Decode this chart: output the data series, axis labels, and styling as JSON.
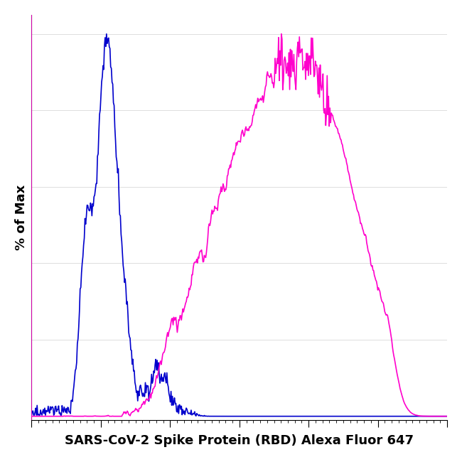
{
  "xlabel": "SARS-CoV-2 Spike Protein (RBD) Alexa Fluor 647",
  "ylabel": "% of Max",
  "background_color": "#ffffff",
  "plot_bg_color": "#ffffff",
  "blue_color": "#0000cc",
  "pink_color": "#ff00cc",
  "line_width": 1.2,
  "xlabel_fontsize": 13,
  "ylabel_fontsize": 13,
  "x_min": 0.0,
  "x_max": 1.0,
  "seed": 42
}
